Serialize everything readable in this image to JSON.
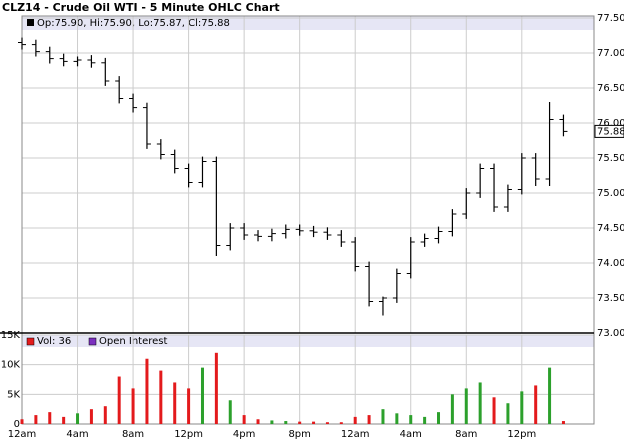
{
  "chart_data": {
    "type": "ohlc",
    "title": "CLZ14 - Crude Oil WTI - 5 Minute OHLC Chart",
    "legend_text": "Op:75.90, Hi:75.90, Lo:75.87, Cl:75.88",
    "last_price": 75.88,
    "volume_legend": "Vol: 36",
    "open_interest_legend": "Open Interest",
    "color": "#000000",
    "up_color": "#2ca02c",
    "down_color": "#e31a1c",
    "oi_color": "#7b2fbf",
    "grid": true,
    "x": [
      0,
      1,
      2,
      3,
      4,
      5,
      6,
      7,
      8,
      9,
      10,
      11,
      12,
      13,
      14,
      15,
      16,
      17,
      18,
      19,
      20,
      21,
      22,
      23,
      24,
      25,
      26,
      27,
      28,
      29,
      30,
      31,
      32,
      33,
      34,
      35,
      36,
      37,
      38,
      39
    ],
    "open": [
      77.15,
      77.12,
      77.02,
      76.92,
      76.88,
      76.9,
      76.86,
      76.6,
      76.35,
      76.22,
      75.7,
      75.55,
      75.35,
      75.15,
      75.45,
      74.25,
      74.5,
      74.4,
      74.38,
      74.42,
      74.48,
      74.46,
      74.44,
      74.4,
      74.3,
      73.95,
      73.45,
      73.5,
      73.85,
      74.3,
      74.35,
      74.45,
      74.7,
      75.0,
      75.35,
      74.8,
      75.05,
      75.5,
      75.2,
      76.05
    ],
    "high": [
      77.22,
      77.19,
      77.09,
      76.99,
      76.95,
      76.97,
      76.93,
      76.67,
      76.42,
      76.29,
      75.77,
      75.62,
      75.42,
      75.52,
      75.52,
      74.57,
      74.57,
      74.47,
      74.49,
      74.55,
      74.55,
      74.53,
      74.51,
      74.47,
      74.37,
      74.02,
      73.52,
      73.92,
      74.37,
      74.42,
      74.52,
      74.77,
      75.07,
      75.42,
      75.42,
      75.12,
      75.57,
      75.57,
      76.3,
      76.12
    ],
    "low": [
      77.05,
      76.95,
      76.85,
      76.81,
      76.81,
      76.79,
      76.53,
      76.28,
      76.15,
      75.63,
      75.48,
      75.28,
      75.08,
      75.08,
      74.1,
      74.18,
      74.33,
      74.31,
      74.31,
      74.35,
      74.39,
      74.37,
      74.33,
      74.23,
      73.88,
      73.38,
      73.25,
      73.43,
      73.78,
      74.23,
      74.28,
      74.38,
      74.63,
      74.93,
      74.73,
      74.73,
      74.98,
      75.1,
      75.1,
      75.81
    ],
    "close": [
      77.12,
      77.02,
      76.92,
      76.88,
      76.9,
      76.86,
      76.6,
      76.35,
      76.22,
      75.7,
      75.55,
      75.35,
      75.15,
      75.45,
      74.25,
      74.5,
      74.4,
      74.38,
      74.42,
      74.48,
      74.46,
      74.44,
      74.4,
      74.3,
      73.95,
      73.45,
      73.5,
      73.85,
      74.3,
      74.35,
      74.45,
      74.7,
      75.0,
      75.35,
      74.8,
      75.05,
      75.5,
      75.2,
      76.05,
      75.88
    ],
    "volume": [
      800,
      1500,
      2000,
      1200,
      1800,
      2500,
      3000,
      8000,
      6000,
      11000,
      9000,
      7000,
      6000,
      9500,
      12000,
      4000,
      1500,
      800,
      600,
      500,
      400,
      400,
      300,
      300,
      1200,
      1500,
      2500,
      1800,
      1500,
      1200,
      2000,
      5000,
      6000,
      7000,
      4500,
      3500,
      5500,
      6500,
      9500,
      500
    ],
    "xlim": [
      0,
      41.2
    ],
    "xticks": [
      {
        "value": 0,
        "label": "12am"
      },
      {
        "value": 4,
        "label": "4am"
      },
      {
        "value": 8,
        "label": "8am"
      },
      {
        "value": 12,
        "label": "12pm"
      },
      {
        "value": 16,
        "label": "4pm"
      },
      {
        "value": 20,
        "label": "8pm"
      },
      {
        "value": 24,
        "label": "12am"
      },
      {
        "value": 28,
        "label": "4am"
      },
      {
        "value": 32,
        "label": "8am"
      },
      {
        "value": 36,
        "label": "12pm"
      }
    ],
    "ylim": [
      73,
      77.5
    ],
    "yticks": [
      {
        "value": 73,
        "label": "73.00"
      },
      {
        "value": 73.5,
        "label": "73.50"
      },
      {
        "value": 74,
        "label": "74.00"
      },
      {
        "value": 74.5,
        "label": "74.50"
      },
      {
        "value": 75,
        "label": "75.00"
      },
      {
        "value": 75.5,
        "label": "75.50"
      },
      {
        "value": 76,
        "label": "76.00"
      },
      {
        "value": 76.5,
        "label": "76.50"
      },
      {
        "value": 77,
        "label": "77.00"
      },
      {
        "value": 77.5,
        "label": "77.50"
      }
    ],
    "y2lim": [
      0,
      15000
    ],
    "y2ticks": [
      0,
      {
        "value": 5000,
        "label": "5K"
      },
      {
        "value": 10000,
        "label": "10K"
      },
      {
        "value": 15000,
        "label": "15K"
      }
    ]
  }
}
